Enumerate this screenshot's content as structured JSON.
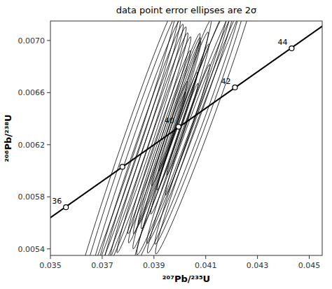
{
  "chart_data": {
    "type": "concordia",
    "title": "data point error ellipses are 2σ",
    "xlabel": "  ²⁰⁷Pb/²³⁵U",
    "ylabel": "²⁰⁶Pb/²³⁸U",
    "xlim": [
      0.035,
      0.0455
    ],
    "ylim": [
      0.00535,
      0.00715
    ],
    "xticks": [
      0.035,
      0.037,
      0.039,
      0.041,
      0.043,
      0.045
    ],
    "yticks": [
      0.0054,
      0.0058,
      0.0062,
      0.0066,
      {
        "value": 0.007,
        "label": "0.0070"
      }
    ],
    "grid": false,
    "line": {
      "x": [
        0.034,
        0.046
      ],
      "values": [
        0.00549993,
        0.00717958
      ],
      "color": "#000000"
    },
    "concordia_points": {
      "x": [
        0.0356,
        0.03778,
        0.03995,
        0.04213,
        0.04432
      ],
      "values": [
        0.00572,
        0.00603,
        0.006338,
        0.00664,
        0.00694
      ],
      "labels": [
        "36",
        null,
        "40",
        "42",
        "44"
      ]
    },
    "ellipses": {
      "color": "#000000",
      "x": [
        0.0398,
        0.0396,
        0.04,
        0.0397,
        0.0401,
        0.0394,
        0.0392,
        0.0395,
        0.0402,
        0.0404,
        0.039,
        0.0388,
        0.0386,
        0.0406,
        0.0408,
        0.0384,
        0.0382,
        0.041,
        0.0403,
        0.0399,
        0.0396,
        0.0401,
        0.0397,
        0.038,
        0.0378
      ],
      "y": [
        0.00631,
        0.00629,
        0.00632,
        0.00628,
        0.0063,
        0.00625,
        0.00622,
        0.00627,
        0.00633,
        0.00634,
        0.0062,
        0.00618,
        0.00615,
        0.00636,
        0.00638,
        0.00612,
        0.0061,
        0.0064,
        0.006315,
        0.006305,
        0.006285,
        0.00632,
        0.0063,
        0.00608,
        0.00606
      ],
      "width": [
        0.003,
        0.0028,
        0.0026,
        0.0035,
        0.004,
        0.0032,
        0.0028,
        0.003,
        0.0045,
        0.0038,
        0.0033,
        0.0035,
        0.0038,
        0.0042,
        0.004,
        0.004,
        0.0042,
        0.0044,
        0.002,
        0.0018,
        0.0016,
        0.0014,
        0.0012,
        0.0046,
        0.0048
      ],
      "height": [
        0.0002,
        0.00018,
        0.00016,
        0.00022,
        0.00025,
        0.0002,
        0.00017,
        0.00019,
        0.00028,
        0.00023,
        0.0002,
        0.00021,
        0.00023,
        0.00026,
        0.00024,
        0.00025,
        0.00026,
        0.00027,
        0.00013,
        0.00012,
        0.00011,
        0.0001,
        9e-05,
        0.00029,
        0.0003
      ],
      "angle": [
        30,
        30,
        30,
        30,
        28,
        30,
        30,
        30,
        28,
        28,
        30,
        30,
        30,
        28,
        28,
        30,
        30,
        28,
        30,
        30,
        30,
        30,
        30,
        30,
        30
      ]
    }
  }
}
